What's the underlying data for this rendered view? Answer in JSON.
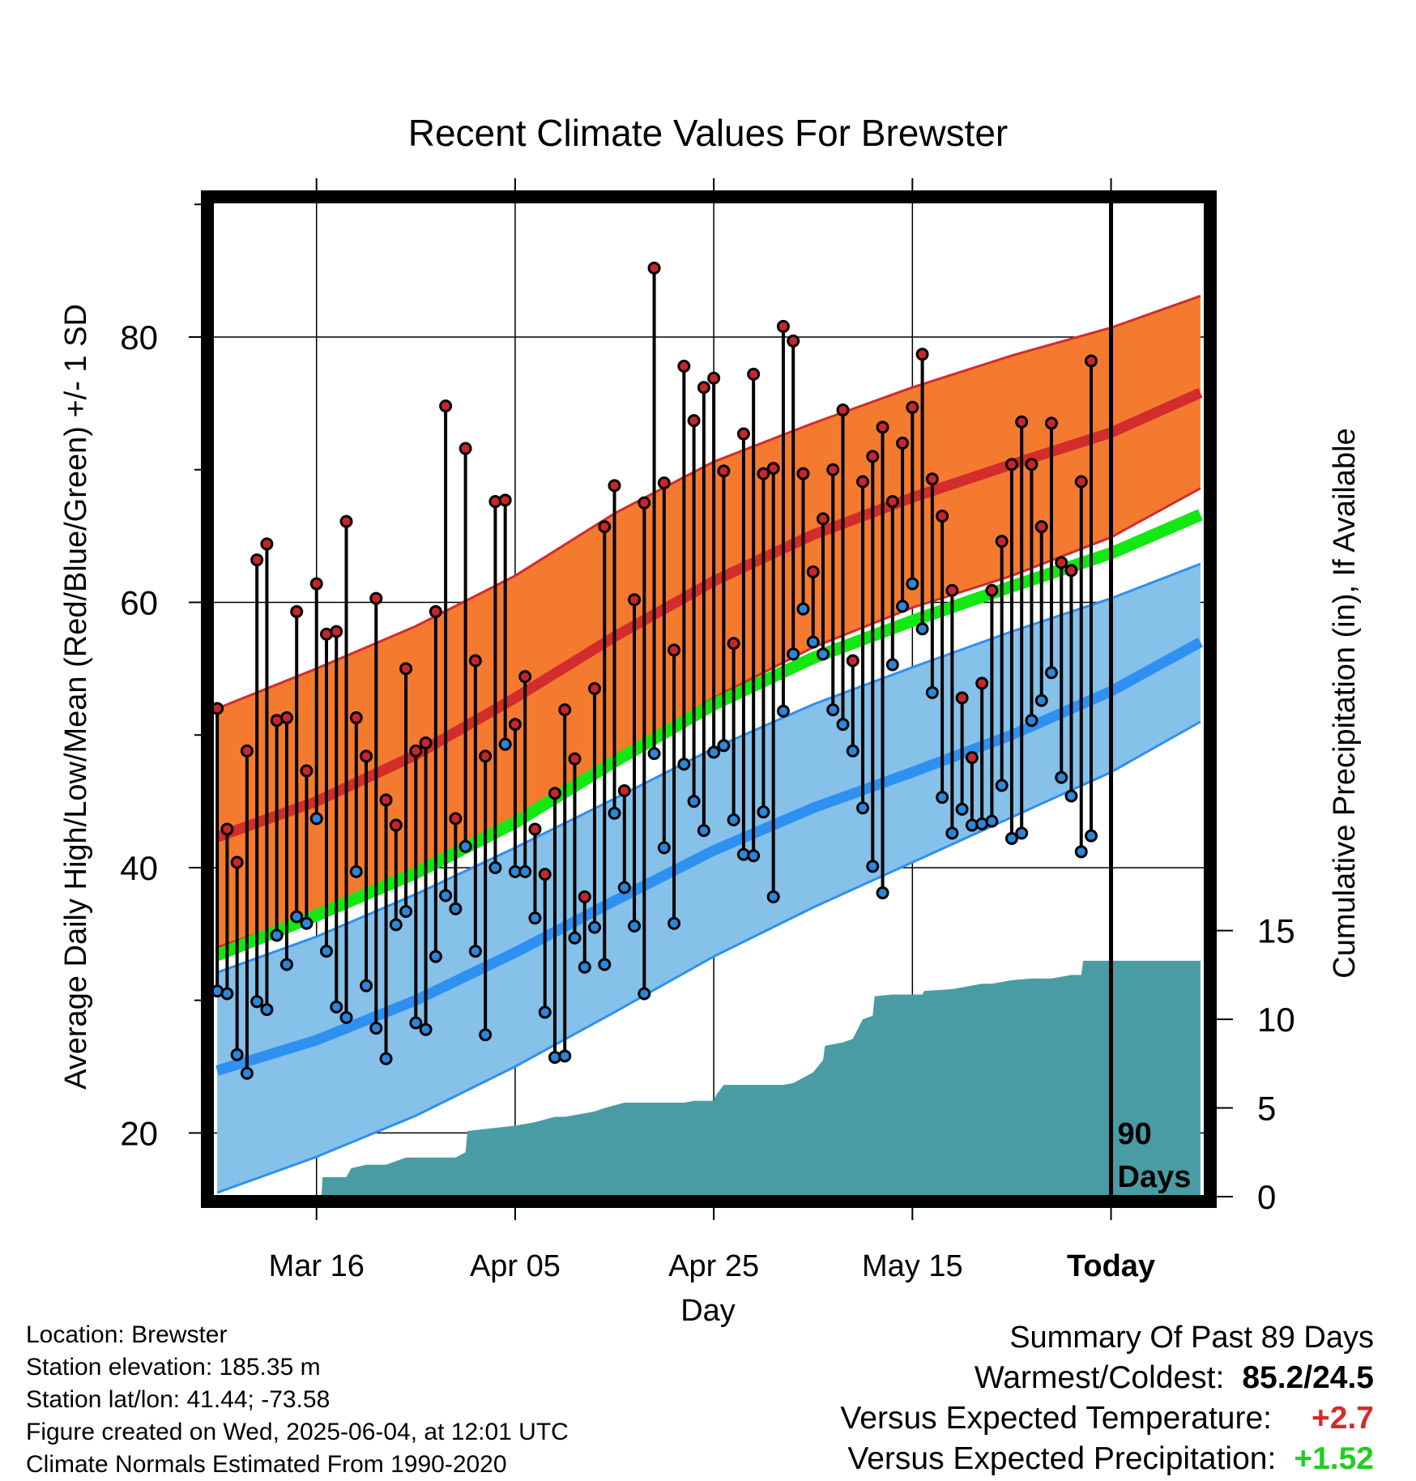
{
  "colors": {
    "high_band": "#F47A30",
    "high_band_edge": "#D22C2C",
    "high_mean": "#D22C2C",
    "low_band": "#85C1E9",
    "low_band_edge": "#2E90F0",
    "low_mean": "#2E90F0",
    "mean_line": "#13E813",
    "precip_fill": "#4A9CA4",
    "high_point": "#C8262B",
    "low_point": "#2C86DA",
    "warm_value": "#D22C2C",
    "wet_value": "#22CC22"
  },
  "chart_data": {
    "type": "line",
    "title": "Recent Climate Values For Brewster",
    "xlabel": "Day",
    "ylabel_left": "Average Daily High/Low/Mean (Red/Blue/Green) +/- 1 SD",
    "ylabel_right": "Cumulative Precipitation (in), If Available",
    "x_ticks": [
      "Mar 16",
      "Apr 05",
      "Apr 25",
      "May 15",
      "Today"
    ],
    "x_tick_days": [
      10,
      30,
      50,
      70,
      90
    ],
    "x_range_days": [
      -0.5,
      99.5
    ],
    "y_left_ticks": [
      20,
      40,
      60,
      80
    ],
    "y_left_range": [
      15.2,
      90.2
    ],
    "y_right_ticks": [
      0,
      5,
      10,
      15
    ],
    "y_right_range": [
      0,
      56.1
    ],
    "grid": true,
    "today_marker_label": "90 Days",
    "today_marker_day": 90,
    "normals": {
      "days": [
        0,
        10,
        20,
        30,
        40,
        50,
        60,
        70,
        80,
        90,
        99
      ],
      "high_mean": [
        42.3,
        45.0,
        48.5,
        52.8,
        57.4,
        61.6,
        65.1,
        67.9,
        70.4,
        72.8,
        75.8
      ],
      "high_upper": [
        52.0,
        55.0,
        58.2,
        62.0,
        66.7,
        70.6,
        73.5,
        76.2,
        78.6,
        80.7,
        83.1
      ],
      "high_lower": [
        34.0,
        36.5,
        39.4,
        43.3,
        48.1,
        52.8,
        56.6,
        59.6,
        62.0,
        64.9,
        68.6
      ],
      "mean": [
        33.4,
        36.4,
        39.6,
        43.4,
        48.0,
        52.3,
        55.8,
        58.6,
        61.2,
        63.7,
        66.6
      ],
      "low_mean": [
        24.7,
        27.0,
        30.0,
        33.6,
        37.5,
        41.3,
        44.5,
        47.2,
        50.0,
        53.3,
        57.0
      ],
      "low_upper": [
        32.1,
        34.8,
        38.0,
        41.5,
        45.2,
        49.0,
        52.3,
        55.1,
        57.8,
        60.3,
        62.9
      ],
      "low_lower": [
        15.5,
        18.2,
        21.3,
        25.0,
        29.1,
        33.3,
        37.0,
        40.4,
        43.8,
        47.2,
        51.0
      ]
    },
    "precip": {
      "days": [
        0,
        10.5,
        10.6,
        13,
        13.5,
        15,
        17,
        19,
        24,
        25,
        25.2,
        30,
        32,
        34,
        35,
        37,
        38,
        39,
        41,
        43,
        47,
        48,
        50,
        50.2,
        51,
        55,
        57,
        58,
        59,
        60,
        61,
        61.2,
        63,
        64,
        65,
        66,
        66.2,
        68,
        71,
        71.2,
        74,
        75,
        76,
        77,
        78,
        80,
        82,
        83,
        84,
        86,
        87,
        87.2,
        90,
        99
      ],
      "values": [
        0,
        0,
        1.1,
        1.1,
        1.6,
        1.8,
        1.8,
        2.2,
        2.2,
        2.5,
        3.7,
        4.0,
        4.2,
        4.5,
        4.5,
        4.7,
        4.8,
        5.0,
        5.3,
        5.3,
        5.3,
        5.4,
        5.4,
        5.7,
        6.3,
        6.3,
        6.3,
        6.4,
        6.7,
        7.0,
        7.7,
        8.5,
        8.7,
        8.9,
        10.0,
        10.2,
        11.3,
        11.4,
        11.4,
        11.6,
        11.7,
        11.8,
        11.9,
        12.0,
        12.0,
        12.2,
        12.3,
        12.3,
        12.3,
        12.5,
        12.5,
        13.3,
        13.3,
        13.3
      ]
    },
    "series": [
      {
        "name": "High",
        "values": [
          52.0,
          42.9,
          40.4,
          48.8,
          63.2,
          64.4,
          51.1,
          51.3,
          59.3,
          47.3,
          61.4,
          57.6,
          57.8,
          66.1,
          51.3,
          48.4,
          60.3,
          45.1,
          43.2,
          55.0,
          48.8,
          49.4,
          59.3,
          74.8,
          43.7,
          71.6,
          55.6,
          48.4,
          67.6,
          67.7,
          50.8,
          54.4,
          42.9,
          39.5,
          45.6,
          51.9,
          48.2,
          37.8,
          53.5,
          65.7,
          68.8,
          45.8,
          60.2,
          67.5,
          85.2,
          69.0,
          56.4,
          77.8,
          73.7,
          76.2,
          76.9,
          69.9,
          56.9,
          72.7,
          77.2,
          69.7,
          70.1,
          80.8,
          79.7,
          69.7,
          62.3,
          66.3,
          70.0,
          74.5,
          55.6,
          69.1,
          71.0,
          73.2,
          67.6,
          72.0,
          74.7,
          78.7,
          69.3,
          66.5,
          60.9,
          52.8,
          48.3,
          53.9,
          60.9,
          64.6,
          70.4,
          73.6,
          70.4,
          65.7,
          73.5,
          63.0,
          62.4,
          69.1,
          78.2
        ],
        "draw": "point"
      },
      {
        "name": "Low",
        "values": [
          30.7,
          30.5,
          25.9,
          24.5,
          29.9,
          29.3,
          34.9,
          32.7,
          36.3,
          35.8,
          43.7,
          33.7,
          29.5,
          28.7,
          39.7,
          31.1,
          27.9,
          25.6,
          35.7,
          36.7,
          28.3,
          27.8,
          33.3,
          37.9,
          36.9,
          41.6,
          33.7,
          27.4,
          40.0,
          49.3,
          39.7,
          39.7,
          36.2,
          29.1,
          25.7,
          25.8,
          34.7,
          32.5,
          35.5,
          32.7,
          44.1,
          38.5,
          35.6,
          30.5,
          48.6,
          41.5,
          35.8,
          47.8,
          45.0,
          42.8,
          48.7,
          49.2,
          43.6,
          41.0,
          40.9,
          44.2,
          37.8,
          51.8,
          56.1,
          59.5,
          57.0,
          56.1,
          51.9,
          50.8,
          48.8,
          44.5,
          40.1,
          38.1,
          55.3,
          59.7,
          61.4,
          58.0,
          53.2,
          45.3,
          42.6,
          44.4,
          43.2,
          43.3,
          43.5,
          46.2,
          42.2,
          42.6,
          51.1,
          52.6,
          54.7,
          46.8,
          45.4,
          41.2,
          42.4
        ],
        "draw": "point"
      }
    ]
  },
  "footer_left": {
    "location": "Location: Brewster",
    "elevation": "Station elevation: 185.35 m",
    "latlon": "Station lat/lon: 41.44; -73.58",
    "created": "Figure created on Wed, 2025-06-04, at 12:01 UTC",
    "normals_note": "Climate Normals Estimated From 1990-2020"
  },
  "summary": {
    "title": "Summary Of Past 89 Days",
    "warmest_coldest_label": "Warmest/Coldest:",
    "warmest_coldest_value": "85.2/24.5",
    "temp_label": "Versus Expected Temperature:",
    "temp_value": "+2.7",
    "precip_label": "Versus Expected Precipitation:",
    "precip_value": "+1.52"
  }
}
